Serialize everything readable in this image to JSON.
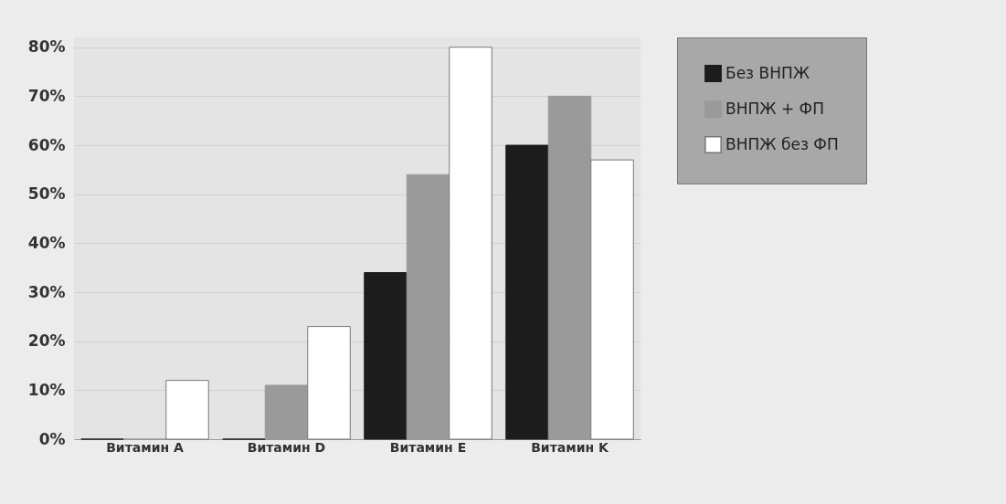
{
  "chart_data": {
    "type": "bar",
    "categories": [
      "Витамин A",
      "Витамин D",
      "Витамин E",
      "Витамин K"
    ],
    "series": [
      {
        "name": "Без ВНПЖ",
        "color": "#1c1c1c",
        "values": [
          0,
          0,
          34,
          60
        ]
      },
      {
        "name": "ВНПЖ + ФП",
        "color": "#9a9a9a",
        "values": [
          0,
          11,
          54,
          70
        ]
      },
      {
        "name": "ВНПЖ без ФП",
        "color": "#ffffff",
        "values": [
          12,
          23,
          80,
          57
        ]
      }
    ],
    "ylim": [
      0,
      82
    ],
    "yticks": [
      {
        "value": 0,
        "label": "0%"
      },
      {
        "value": 10,
        "label": "10%"
      },
      {
        "value": 20,
        "label": "20%"
      },
      {
        "value": 30,
        "label": "30%"
      },
      {
        "value": 40,
        "label": "40%"
      },
      {
        "value": 50,
        "label": "50%"
      },
      {
        "value": 60,
        "label": "60%"
      },
      {
        "value": 70,
        "label": "70%"
      },
      {
        "value": 80,
        "label": "80%"
      }
    ],
    "grid": "y",
    "legend": "right"
  }
}
